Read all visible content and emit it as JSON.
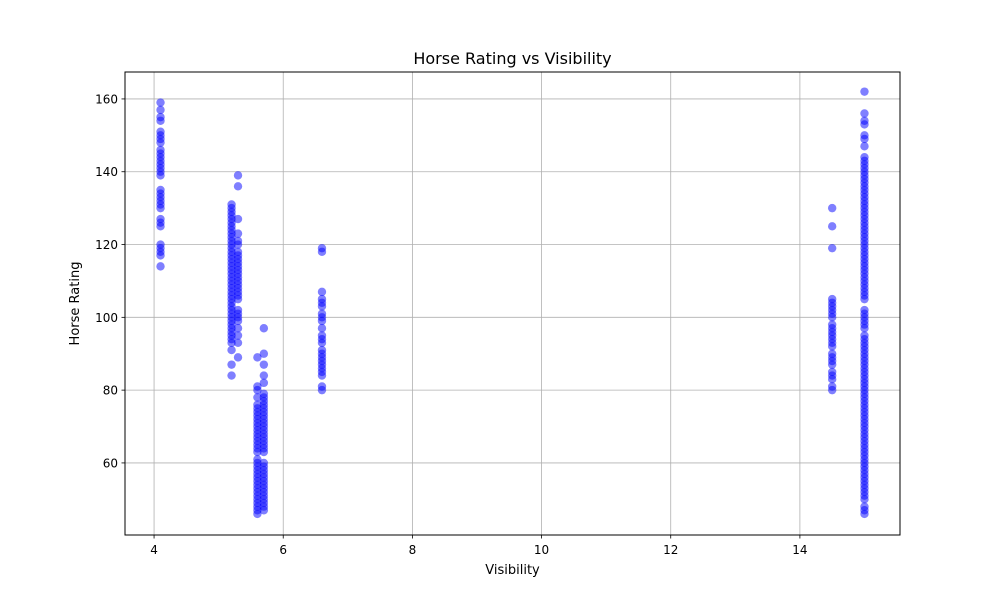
{
  "chart_data": {
    "type": "scatter",
    "title": "Horse Rating vs Visibility",
    "xlabel": "Visibility",
    "ylabel": "Horse Rating",
    "xlim": [
      3.55,
      15.55
    ],
    "ylim": [
      40.2,
      167.4
    ],
    "xticks": [
      4,
      6,
      8,
      10,
      12,
      14
    ],
    "yticks": [
      60,
      80,
      100,
      120,
      140,
      160
    ],
    "grid": true,
    "marker_color": "#0000ff",
    "marker_alpha": 0.5,
    "series": [
      {
        "points": [
          [
            4.1,
            159
          ],
          [
            4.1,
            157
          ],
          [
            4.1,
            155
          ],
          [
            4.1,
            154
          ],
          [
            4.1,
            151
          ],
          [
            4.1,
            150
          ],
          [
            4.1,
            149
          ],
          [
            4.1,
            148
          ],
          [
            4.1,
            146
          ],
          [
            4.1,
            145
          ],
          [
            4.1,
            144
          ],
          [
            4.1,
            143
          ],
          [
            4.1,
            142
          ],
          [
            4.1,
            141
          ],
          [
            4.1,
            140
          ],
          [
            4.1,
            139
          ],
          [
            4.1,
            135
          ],
          [
            4.1,
            134
          ],
          [
            4.1,
            133
          ],
          [
            4.1,
            132
          ],
          [
            4.1,
            131
          ],
          [
            4.1,
            130
          ],
          [
            4.1,
            127
          ],
          [
            4.1,
            126
          ],
          [
            4.1,
            125
          ],
          [
            4.1,
            120
          ],
          [
            4.1,
            119
          ],
          [
            4.1,
            118
          ],
          [
            4.1,
            117
          ],
          [
            4.1,
            114
          ],
          [
            5.2,
            131
          ],
          [
            5.2,
            130
          ],
          [
            5.2,
            129
          ],
          [
            5.2,
            128
          ],
          [
            5.2,
            127
          ],
          [
            5.2,
            126
          ],
          [
            5.2,
            125
          ],
          [
            5.2,
            124
          ],
          [
            5.2,
            123
          ],
          [
            5.2,
            122
          ],
          [
            5.2,
            121
          ],
          [
            5.2,
            120
          ],
          [
            5.2,
            119
          ],
          [
            5.2,
            118
          ],
          [
            5.2,
            117
          ],
          [
            5.2,
            116
          ],
          [
            5.2,
            115
          ],
          [
            5.2,
            114
          ],
          [
            5.2,
            113
          ],
          [
            5.2,
            112
          ],
          [
            5.2,
            111
          ],
          [
            5.2,
            110
          ],
          [
            5.2,
            109
          ],
          [
            5.2,
            108
          ],
          [
            5.2,
            107
          ],
          [
            5.2,
            106
          ],
          [
            5.2,
            105
          ],
          [
            5.2,
            104
          ],
          [
            5.2,
            103
          ],
          [
            5.2,
            102
          ],
          [
            5.2,
            101
          ],
          [
            5.2,
            100
          ],
          [
            5.2,
            99
          ],
          [
            5.2,
            98
          ],
          [
            5.2,
            97
          ],
          [
            5.2,
            96
          ],
          [
            5.2,
            95
          ],
          [
            5.2,
            94
          ],
          [
            5.2,
            93
          ],
          [
            5.2,
            91
          ],
          [
            5.2,
            87
          ],
          [
            5.2,
            84
          ],
          [
            5.3,
            139
          ],
          [
            5.3,
            136
          ],
          [
            5.3,
            127
          ],
          [
            5.3,
            123
          ],
          [
            5.3,
            121
          ],
          [
            5.3,
            120
          ],
          [
            5.3,
            118
          ],
          [
            5.3,
            117
          ],
          [
            5.3,
            116
          ],
          [
            5.3,
            115
          ],
          [
            5.3,
            114
          ],
          [
            5.3,
            113
          ],
          [
            5.3,
            112
          ],
          [
            5.3,
            111
          ],
          [
            5.3,
            110
          ],
          [
            5.3,
            109
          ],
          [
            5.3,
            108
          ],
          [
            5.3,
            107
          ],
          [
            5.3,
            106
          ],
          [
            5.3,
            105
          ],
          [
            5.3,
            102
          ],
          [
            5.3,
            101
          ],
          [
            5.3,
            100
          ],
          [
            5.3,
            99
          ],
          [
            5.3,
            97
          ],
          [
            5.3,
            95
          ],
          [
            5.3,
            93
          ],
          [
            5.3,
            89
          ],
          [
            5.6,
            89
          ],
          [
            5.6,
            81
          ],
          [
            5.6,
            80
          ],
          [
            5.6,
            78
          ],
          [
            5.6,
            76
          ],
          [
            5.6,
            75
          ],
          [
            5.6,
            74
          ],
          [
            5.6,
            73
          ],
          [
            5.6,
            72
          ],
          [
            5.6,
            71
          ],
          [
            5.6,
            70
          ],
          [
            5.6,
            69
          ],
          [
            5.6,
            68
          ],
          [
            5.6,
            67
          ],
          [
            5.6,
            66
          ],
          [
            5.6,
            65
          ],
          [
            5.6,
            64
          ],
          [
            5.6,
            63
          ],
          [
            5.6,
            61
          ],
          [
            5.6,
            60
          ],
          [
            5.6,
            59
          ],
          [
            5.6,
            58
          ],
          [
            5.6,
            57
          ],
          [
            5.6,
            56
          ],
          [
            5.6,
            55
          ],
          [
            5.6,
            54
          ],
          [
            5.6,
            53
          ],
          [
            5.6,
            52
          ],
          [
            5.6,
            51
          ],
          [
            5.6,
            50
          ],
          [
            5.6,
            49
          ],
          [
            5.6,
            48
          ],
          [
            5.6,
            47
          ],
          [
            5.6,
            46
          ],
          [
            5.7,
            97
          ],
          [
            5.7,
            90
          ],
          [
            5.7,
            87
          ],
          [
            5.7,
            84
          ],
          [
            5.7,
            82
          ],
          [
            5.7,
            79
          ],
          [
            5.7,
            78
          ],
          [
            5.7,
            77
          ],
          [
            5.7,
            76
          ],
          [
            5.7,
            75
          ],
          [
            5.7,
            74
          ],
          [
            5.7,
            73
          ],
          [
            5.7,
            72
          ],
          [
            5.7,
            71
          ],
          [
            5.7,
            70
          ],
          [
            5.7,
            69
          ],
          [
            5.7,
            68
          ],
          [
            5.7,
            67
          ],
          [
            5.7,
            66
          ],
          [
            5.7,
            65
          ],
          [
            5.7,
            64
          ],
          [
            5.7,
            63
          ],
          [
            5.7,
            60
          ],
          [
            5.7,
            59
          ],
          [
            5.7,
            58
          ],
          [
            5.7,
            57
          ],
          [
            5.7,
            56
          ],
          [
            5.7,
            55
          ],
          [
            5.7,
            54
          ],
          [
            5.7,
            53
          ],
          [
            5.7,
            52
          ],
          [
            5.7,
            51
          ],
          [
            5.7,
            50
          ],
          [
            5.7,
            49
          ],
          [
            5.7,
            48
          ],
          [
            5.7,
            47
          ],
          [
            6.6,
            119
          ],
          [
            6.6,
            118
          ],
          [
            6.6,
            107
          ],
          [
            6.6,
            105
          ],
          [
            6.6,
            104
          ],
          [
            6.6,
            103
          ],
          [
            6.6,
            101
          ],
          [
            6.6,
            100
          ],
          [
            6.6,
            99
          ],
          [
            6.6,
            97
          ],
          [
            6.6,
            95
          ],
          [
            6.6,
            94
          ],
          [
            6.6,
            93
          ],
          [
            6.6,
            91
          ],
          [
            6.6,
            90
          ],
          [
            6.6,
            89
          ],
          [
            6.6,
            88
          ],
          [
            6.6,
            87
          ],
          [
            6.6,
            86
          ],
          [
            6.6,
            85
          ],
          [
            6.6,
            84
          ],
          [
            6.6,
            81
          ],
          [
            6.6,
            80
          ],
          [
            14.5,
            130
          ],
          [
            14.5,
            125
          ],
          [
            14.5,
            119
          ],
          [
            14.5,
            105
          ],
          [
            14.5,
            104
          ],
          [
            14.5,
            103
          ],
          [
            14.5,
            102
          ],
          [
            14.5,
            101
          ],
          [
            14.5,
            100
          ],
          [
            14.5,
            98
          ],
          [
            14.5,
            97
          ],
          [
            14.5,
            96
          ],
          [
            14.5,
            95
          ],
          [
            14.5,
            94
          ],
          [
            14.5,
            93
          ],
          [
            14.5,
            92
          ],
          [
            14.5,
            90
          ],
          [
            14.5,
            89
          ],
          [
            14.5,
            88
          ],
          [
            14.5,
            87
          ],
          [
            14.5,
            85
          ],
          [
            14.5,
            84
          ],
          [
            14.5,
            83
          ],
          [
            14.5,
            81
          ],
          [
            14.5,
            80
          ],
          [
            15.0,
            162
          ],
          [
            15.0,
            156
          ],
          [
            15.0,
            154
          ],
          [
            15.0,
            153
          ],
          [
            15.0,
            150
          ],
          [
            15.0,
            149
          ],
          [
            15.0,
            147
          ],
          [
            15.0,
            144
          ],
          [
            15.0,
            143
          ],
          [
            15.0,
            142
          ],
          [
            15.0,
            141
          ],
          [
            15.0,
            140
          ],
          [
            15.0,
            139
          ],
          [
            15.0,
            138
          ],
          [
            15.0,
            137
          ],
          [
            15.0,
            136
          ],
          [
            15.0,
            135
          ],
          [
            15.0,
            134
          ],
          [
            15.0,
            133
          ],
          [
            15.0,
            132
          ],
          [
            15.0,
            131
          ],
          [
            15.0,
            130
          ],
          [
            15.0,
            129
          ],
          [
            15.0,
            128
          ],
          [
            15.0,
            127
          ],
          [
            15.0,
            126
          ],
          [
            15.0,
            125
          ],
          [
            15.0,
            124
          ],
          [
            15.0,
            123
          ],
          [
            15.0,
            122
          ],
          [
            15.0,
            121
          ],
          [
            15.0,
            120
          ],
          [
            15.0,
            119
          ],
          [
            15.0,
            118
          ],
          [
            15.0,
            117
          ],
          [
            15.0,
            116
          ],
          [
            15.0,
            115
          ],
          [
            15.0,
            114
          ],
          [
            15.0,
            113
          ],
          [
            15.0,
            112
          ],
          [
            15.0,
            111
          ],
          [
            15.0,
            110
          ],
          [
            15.0,
            109
          ],
          [
            15.0,
            108
          ],
          [
            15.0,
            107
          ],
          [
            15.0,
            106
          ],
          [
            15.0,
            105
          ],
          [
            15.0,
            102
          ],
          [
            15.0,
            101
          ],
          [
            15.0,
            100
          ],
          [
            15.0,
            99
          ],
          [
            15.0,
            98
          ],
          [
            15.0,
            97
          ],
          [
            15.0,
            95
          ],
          [
            15.0,
            94
          ],
          [
            15.0,
            93
          ],
          [
            15.0,
            92
          ],
          [
            15.0,
            91
          ],
          [
            15.0,
            90
          ],
          [
            15.0,
            89
          ],
          [
            15.0,
            88
          ],
          [
            15.0,
            87
          ],
          [
            15.0,
            86
          ],
          [
            15.0,
            85
          ],
          [
            15.0,
            84
          ],
          [
            15.0,
            83
          ],
          [
            15.0,
            82
          ],
          [
            15.0,
            81
          ],
          [
            15.0,
            80
          ],
          [
            15.0,
            79
          ],
          [
            15.0,
            78
          ],
          [
            15.0,
            77
          ],
          [
            15.0,
            76
          ],
          [
            15.0,
            75
          ],
          [
            15.0,
            74
          ],
          [
            15.0,
            73
          ],
          [
            15.0,
            72
          ],
          [
            15.0,
            71
          ],
          [
            15.0,
            70
          ],
          [
            15.0,
            69
          ],
          [
            15.0,
            68
          ],
          [
            15.0,
            67
          ],
          [
            15.0,
            66
          ],
          [
            15.0,
            65
          ],
          [
            15.0,
            64
          ],
          [
            15.0,
            63
          ],
          [
            15.0,
            62
          ],
          [
            15.0,
            61
          ],
          [
            15.0,
            60
          ],
          [
            15.0,
            59
          ],
          [
            15.0,
            58
          ],
          [
            15.0,
            57
          ],
          [
            15.0,
            56
          ],
          [
            15.0,
            55
          ],
          [
            15.0,
            54
          ],
          [
            15.0,
            53
          ],
          [
            15.0,
            52
          ],
          [
            15.0,
            51
          ],
          [
            15.0,
            50
          ],
          [
            15.0,
            48
          ],
          [
            15.0,
            47
          ],
          [
            15.0,
            46
          ]
        ]
      }
    ]
  }
}
